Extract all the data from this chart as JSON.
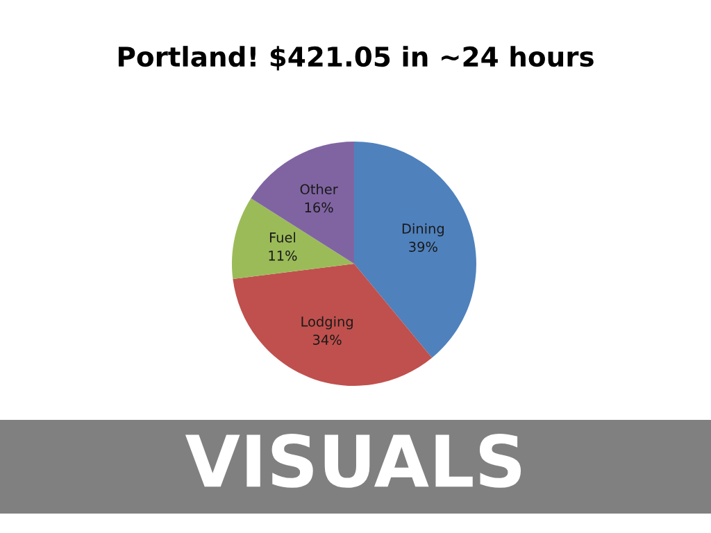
{
  "chart_data": {
    "type": "pie",
    "title": "Portland! $421.05 in ~24 hours",
    "categories": [
      "Dining",
      "Lodging",
      "Fuel",
      "Other"
    ],
    "values": [
      39,
      34,
      11,
      16
    ],
    "colors": [
      "#4f81bd",
      "#c0504d",
      "#9bbb59",
      "#8064a2"
    ],
    "value_labels": [
      "39%",
      "34%",
      "11%",
      "16%"
    ],
    "annotations": [
      "VISUALS"
    ]
  }
}
